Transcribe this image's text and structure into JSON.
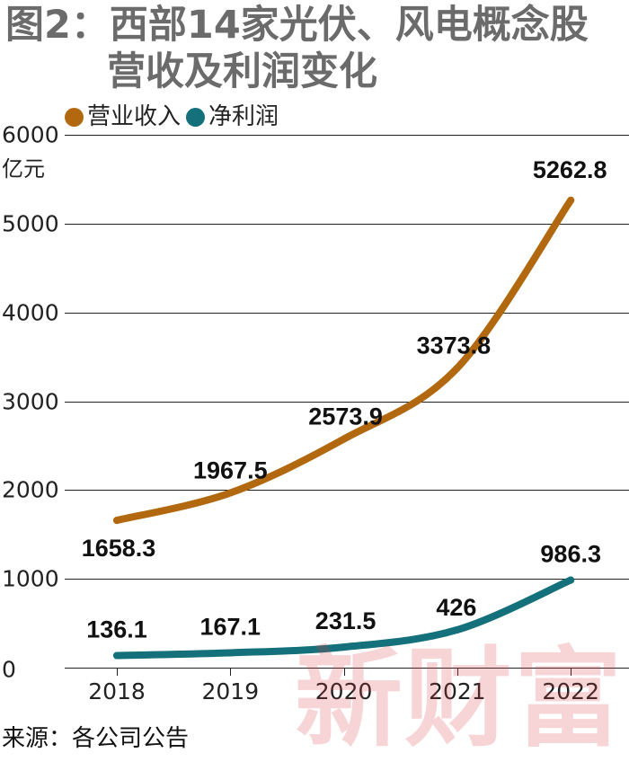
{
  "title": {
    "line1": "图2：西部14家光伏、风电概念股",
    "line2": "营收及利润变化"
  },
  "watermark": "新财富",
  "source": "来源：各公司公告",
  "colors": {
    "revenue": "#b2680f",
    "profit": "#14707a",
    "title": "#6b6b6b",
    "grid": "#222222"
  },
  "chart_data": {
    "type": "line",
    "title": "图2：西部14家光伏、风电概念股营收及利润变化",
    "x": [
      "2018",
      "2019",
      "2020",
      "2021",
      "2022"
    ],
    "y_unit": "亿元",
    "ylim": [
      0,
      6000
    ],
    "yticks": [
      "0",
      "1000",
      "2000",
      "3000",
      "4000",
      "5000",
      "6000"
    ],
    "grid": "horizontal",
    "legend_position": "top-left",
    "series": [
      {
        "name": "营业收入",
        "color": "#b2680f",
        "values": [
          1658.3,
          1967.5,
          2573.9,
          3373.8,
          5262.8
        ],
        "labels": [
          "1658.3",
          "1967.5",
          "2573.9",
          "3373.8",
          "5262.8"
        ]
      },
      {
        "name": "净利润",
        "color": "#14707a",
        "values": [
          136.1,
          167.1,
          231.5,
          426,
          986.3
        ],
        "labels": [
          "136.1",
          "167.1",
          "231.5",
          "426",
          "986.3"
        ]
      }
    ]
  }
}
